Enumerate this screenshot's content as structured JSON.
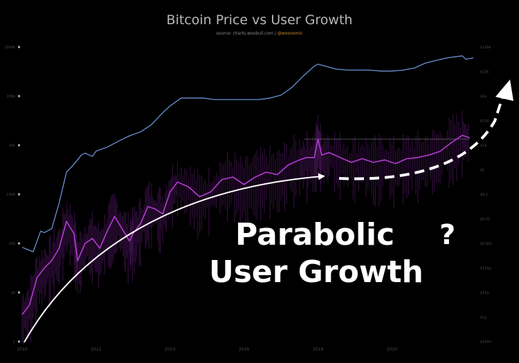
{
  "chart_data": {
    "type": "line",
    "title": "Bitcoin Price vs User Growth",
    "source": "source: charts.woobull.com /",
    "source_handle": "@woonomic",
    "x_ticks": [
      "2010",
      "2012",
      "2014",
      "2016",
      "2018",
      "2020"
    ],
    "xlim": [
      2010,
      2022.2
    ],
    "left_axis_ticks": [
      "1000k",
      "100k",
      "10k",
      "1000",
      "100",
      "10",
      "1"
    ],
    "left_ylim": [
      0,
      6
    ],
    "right_axis_ticks": [
      "$100k",
      "$10k",
      "$1k",
      "$100",
      "$10",
      "$1",
      "$0.1",
      "$0.01",
      "$0.001",
      "$100µ",
      "$10µ",
      "$1µ",
      "$100n"
    ],
    "right_ylim": [
      -7,
      5
    ],
    "log_scale": true,
    "grid": false,
    "series": [
      {
        "name": "",
        "color": "#6a92d4",
        "axis": "left",
        "x": [
          2010.0,
          2010.3,
          2010.5,
          2010.6,
          2010.8,
          2011.0,
          2011.2,
          2011.4,
          2011.6,
          2011.7,
          2011.9,
          2012.0,
          2012.3,
          2012.6,
          2012.9,
          2013.2,
          2013.5,
          2013.8,
          2014.0,
          2014.3,
          2014.6,
          2014.9,
          2015.2,
          2015.5,
          2015.8,
          2016.1,
          2016.4,
          2016.7,
          2017.0,
          2017.3,
          2017.6,
          2017.9,
          2018.0,
          2018.2,
          2018.5,
          2018.8,
          2019.1,
          2019.4,
          2019.7,
          2020.0,
          2020.3,
          2020.6,
          2020.9,
          2021.2,
          2021.5,
          2021.7,
          2021.9,
          2022.0,
          2022.2
        ],
        "values": [
          1.92,
          1.83,
          2.25,
          2.22,
          2.3,
          2.82,
          3.45,
          3.61,
          3.8,
          3.84,
          3.77,
          3.88,
          3.96,
          4.08,
          4.19,
          4.27,
          4.42,
          4.66,
          4.8,
          4.96,
          4.96,
          4.96,
          4.93,
          4.93,
          4.93,
          4.93,
          4.93,
          4.96,
          5.02,
          5.18,
          5.41,
          5.61,
          5.65,
          5.61,
          5.55,
          5.53,
          5.53,
          5.53,
          5.51,
          5.51,
          5.53,
          5.57,
          5.67,
          5.73,
          5.78,
          5.8,
          5.82,
          5.75,
          5.78
        ]
      },
      {
        "name": "",
        "color": "#b43cd2",
        "axis": "right",
        "x": [
          2010.0,
          2010.2,
          2010.4,
          2010.6,
          2010.8,
          2011.0,
          2011.2,
          2011.4,
          2011.5,
          2011.7,
          2011.9,
          2012.1,
          2012.3,
          2012.5,
          2012.7,
          2012.9,
          2013.0,
          2013.2,
          2013.4,
          2013.6,
          2013.8,
          2014.0,
          2014.2,
          2014.5,
          2014.8,
          2015.1,
          2015.4,
          2015.7,
          2016.0,
          2016.3,
          2016.6,
          2016.9,
          2017.2,
          2017.5,
          2017.7,
          2017.9,
          2018.0,
          2018.1,
          2018.3,
          2018.6,
          2018.9,
          2019.2,
          2019.5,
          2019.8,
          2020.1,
          2020.4,
          2020.7,
          2021.0,
          2021.3,
          2021.6,
          2021.9,
          2022.1
        ],
        "values": [
          -5.9,
          -5.5,
          -4.4,
          -4.0,
          -3.7,
          -3.2,
          -2.1,
          -2.6,
          -3.7,
          -3.0,
          -2.8,
          -3.2,
          -2.5,
          -1.9,
          -2.4,
          -2.9,
          -2.6,
          -2.2,
          -1.5,
          -1.6,
          -1.8,
          -0.9,
          -0.5,
          -0.7,
          -1.1,
          -0.9,
          -0.4,
          -0.3,
          -0.6,
          -0.3,
          -0.1,
          -0.2,
          0.2,
          0.4,
          0.5,
          0.5,
          1.25,
          0.6,
          0.7,
          0.5,
          0.3,
          0.45,
          0.3,
          0.4,
          0.25,
          0.45,
          0.5,
          0.6,
          0.75,
          1.1,
          1.4,
          1.3
        ]
      }
    ],
    "annotations": {
      "line1": "Parabolic",
      "line2": "User Growth",
      "question": "?"
    }
  }
}
